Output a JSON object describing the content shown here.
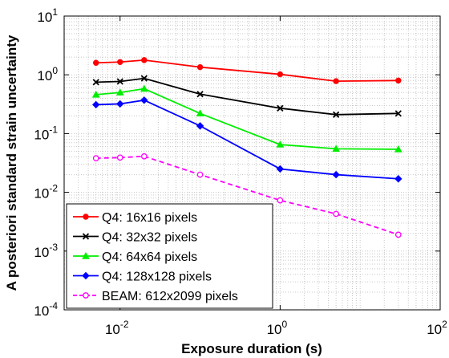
{
  "chart_data": {
    "type": "line",
    "title": "",
    "xlabel": "Exposure duration (s)",
    "ylabel": "A posteriori standard strain uncertainty",
    "xscale": "log",
    "yscale": "log",
    "xlim": [
      0.002,
      100
    ],
    "ylim": [
      0.0001,
      10
    ],
    "x_ticks": [
      {
        "base": "10",
        "exp": "-2",
        "value": 0.01
      },
      {
        "base": "10",
        "exp": "0",
        "value": 1
      },
      {
        "base": "10",
        "exp": "2",
        "value": 100
      }
    ],
    "y_ticks": [
      {
        "base": "10",
        "exp": "-4",
        "value": 0.0001
      },
      {
        "base": "10",
        "exp": "-3",
        "value": 0.001
      },
      {
        "base": "10",
        "exp": "-2",
        "value": 0.01
      },
      {
        "base": "10",
        "exp": "-1",
        "value": 0.1
      },
      {
        "base": "10",
        "exp": "0",
        "value": 1
      },
      {
        "base": "10",
        "exp": "1",
        "value": 10
      }
    ],
    "grid": true,
    "legend_position": "bottom-left",
    "x": [
      0.005,
      0.01,
      0.02,
      0.1,
      1,
      5,
      30
    ],
    "series": [
      {
        "name": "Q4: 16x16 pixels",
        "color": "#ff0000",
        "marker": "circle",
        "dash": "solid",
        "values": [
          1.6,
          1.65,
          1.78,
          1.35,
          1.02,
          0.78,
          0.8
        ]
      },
      {
        "name": "Q4: 32x32 pixels",
        "color": "#000000",
        "marker": "x",
        "dash": "solid",
        "values": [
          0.75,
          0.77,
          0.87,
          0.47,
          0.27,
          0.21,
          0.22
        ]
      },
      {
        "name": "Q4: 64x64 pixels",
        "color": "#00ee00",
        "marker": "triangle",
        "dash": "solid",
        "values": [
          0.46,
          0.5,
          0.58,
          0.22,
          0.065,
          0.055,
          0.054
        ]
      },
      {
        "name": "Q4: 128x128 pixels",
        "color": "#0000ff",
        "marker": "diamond",
        "dash": "solid",
        "values": [
          0.31,
          0.32,
          0.37,
          0.135,
          0.025,
          0.02,
          0.017
        ]
      },
      {
        "name": "BEAM: 612x2099 pixels",
        "color": "#ff00ff",
        "marker": "circle-open",
        "dash": "dashed",
        "values": [
          0.038,
          0.039,
          0.041,
          0.02,
          0.0073,
          0.0043,
          0.0019
        ]
      }
    ]
  }
}
